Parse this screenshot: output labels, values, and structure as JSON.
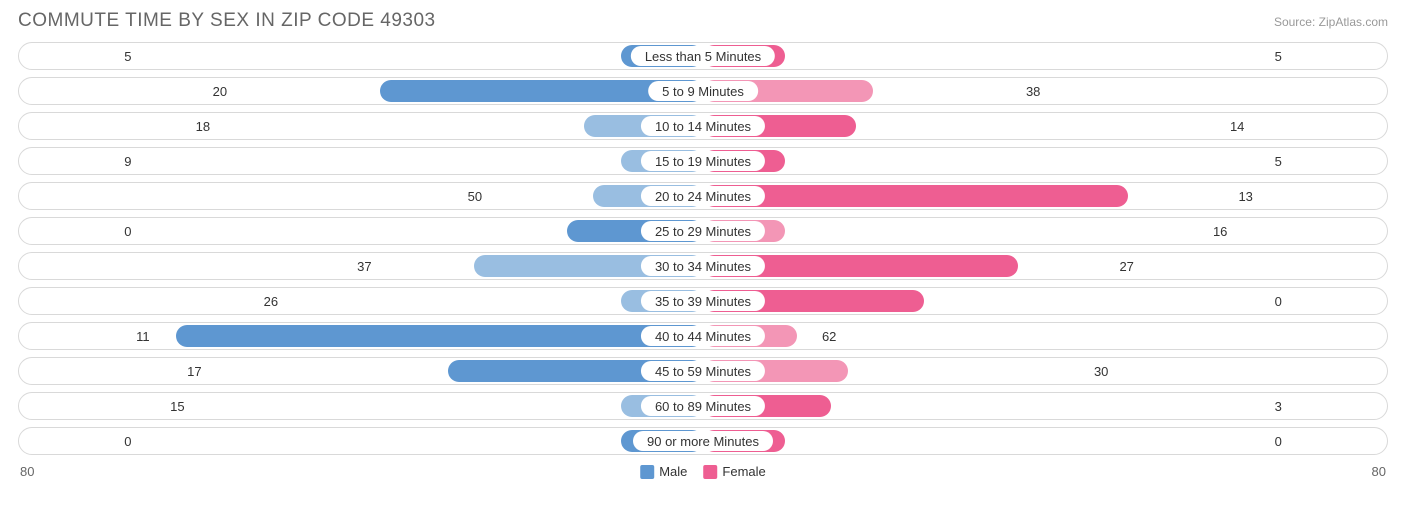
{
  "title": "COMMUTE TIME BY SEX IN ZIP CODE 49303",
  "source": "Source: ZipAtlas.com",
  "colors": {
    "male_dark": "#5e97d1",
    "male_light": "#99bee1",
    "female_dark": "#ee5e92",
    "female_light": "#f396b6",
    "row_border": "#d9d9d9",
    "text": "#333333",
    "title_text": "#666666",
    "source_text": "#999999",
    "background": "#ffffff"
  },
  "chart": {
    "type": "diverging-bar",
    "axis_max": 80,
    "min_bar_pct": 6.0,
    "label_pad_pct": 1.0,
    "inside_threshold_pct": 48.0,
    "axis_left_label": "80",
    "axis_right_label": "80",
    "legend": [
      {
        "label": "Male",
        "color": "#5e97d1"
      },
      {
        "label": "Female",
        "color": "#ee5e92"
      }
    ],
    "rows": [
      {
        "category": "Less than 5 Minutes",
        "male": 5,
        "female": 5
      },
      {
        "category": "5 to 9 Minutes",
        "male": 38,
        "female": 20
      },
      {
        "category": "10 to 14 Minutes",
        "male": 14,
        "female": 18
      },
      {
        "category": "15 to 19 Minutes",
        "male": 5,
        "female": 9
      },
      {
        "category": "20 to 24 Minutes",
        "male": 13,
        "female": 50
      },
      {
        "category": "25 to 29 Minutes",
        "male": 16,
        "female": 0
      },
      {
        "category": "30 to 34 Minutes",
        "male": 27,
        "female": 37
      },
      {
        "category": "35 to 39 Minutes",
        "male": 0,
        "female": 26
      },
      {
        "category": "40 to 44 Minutes",
        "male": 62,
        "female": 11
      },
      {
        "category": "45 to 59 Minutes",
        "male": 30,
        "female": 17
      },
      {
        "category": "60 to 89 Minutes",
        "male": 3,
        "female": 15
      },
      {
        "category": "90 or more Minutes",
        "male": 0,
        "female": 0
      }
    ]
  }
}
